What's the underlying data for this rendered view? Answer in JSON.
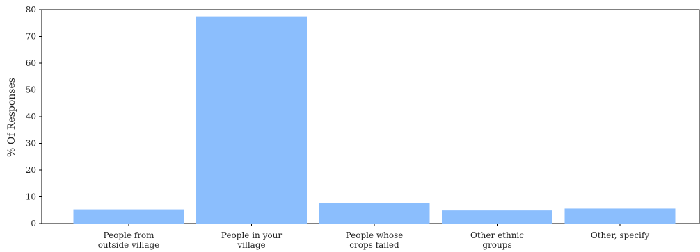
{
  "chart_data": {
    "type": "bar",
    "categories": [
      [
        "People from",
        "outside village"
      ],
      [
        "People in your",
        "village"
      ],
      [
        "People whose",
        "crops failed"
      ],
      [
        "Other ethnic",
        "groups"
      ],
      [
        "Other, specify"
      ]
    ],
    "values": [
      5.3,
      77.5,
      7.7,
      4.9,
      5.6
    ],
    "title": "",
    "xlabel": "",
    "ylabel": "% Of Responses",
    "ylim": [
      0,
      80
    ],
    "yticks": [
      0,
      10,
      20,
      30,
      40,
      50,
      60,
      70,
      80
    ],
    "grid": false,
    "legend": "none",
    "bar_color": "#8bbefd"
  }
}
